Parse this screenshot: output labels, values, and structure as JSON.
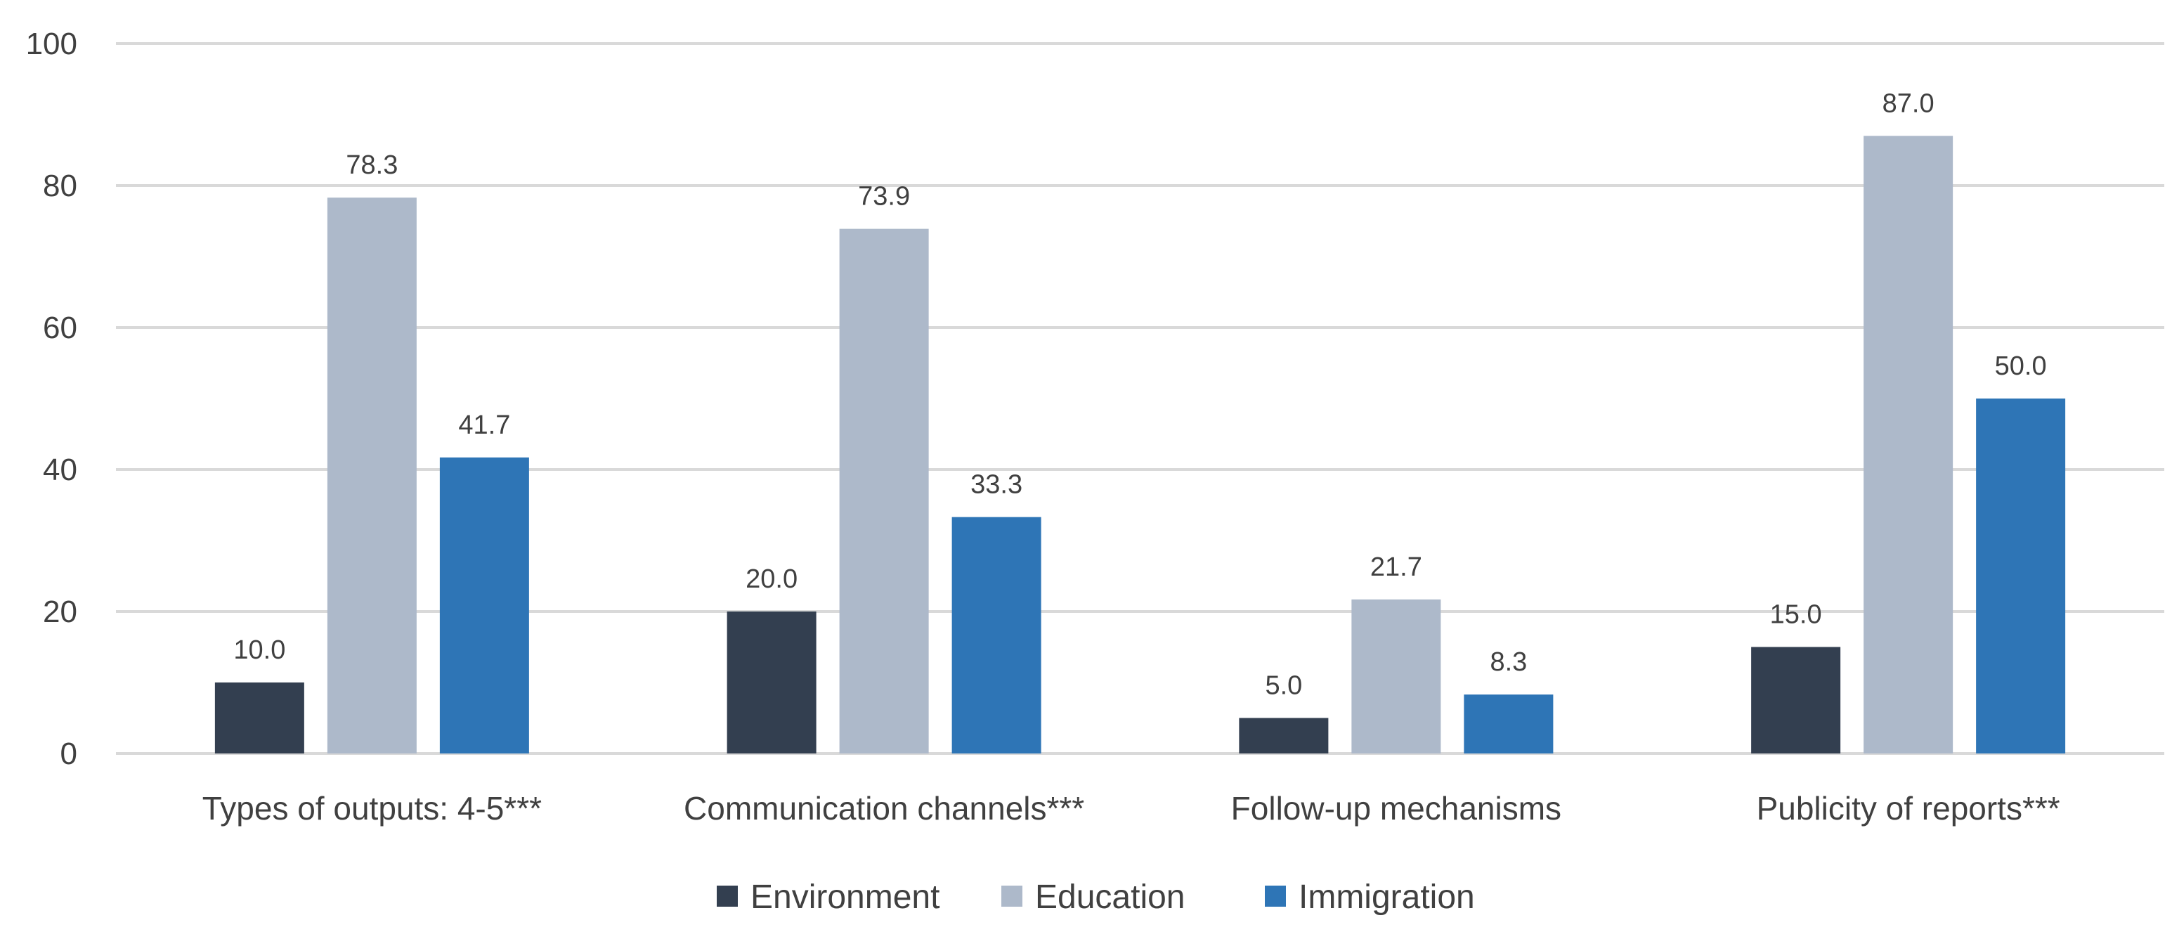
{
  "chart_data": {
    "type": "bar",
    "title": "",
    "xlabel": "",
    "ylabel": "",
    "ylim": [
      0,
      100
    ],
    "yticks": [
      0,
      20,
      40,
      60,
      80,
      100
    ],
    "grid": true,
    "legend_position": "bottom",
    "categories": [
      "Types of outputs: 4-5***",
      "Communication channels***",
      "Follow-up mechanisms",
      "Publicity of reports***"
    ],
    "series": [
      {
        "name": "Environment",
        "color": "#333f50",
        "values": [
          10.0,
          20.0,
          5.0,
          15.0
        ],
        "labels": [
          "10.0",
          "20.0",
          "5.0",
          "15.0"
        ]
      },
      {
        "name": "Education",
        "color": "#adb9ca",
        "values": [
          78.3,
          73.9,
          21.7,
          87.0
        ],
        "labels": [
          "78.3",
          "73.9",
          "21.7",
          "87.0"
        ]
      },
      {
        "name": "Immigration",
        "color": "#2e75b6",
        "values": [
          41.7,
          33.3,
          8.3,
          50.0
        ],
        "labels": [
          "41.7",
          "33.3",
          "8.3",
          "50.0"
        ]
      }
    ]
  }
}
